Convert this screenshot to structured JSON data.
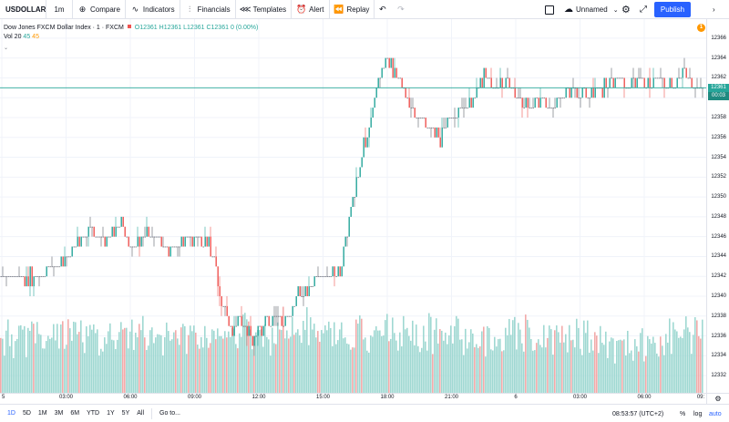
{
  "toolbar": {
    "symbol": "USDOLLAR",
    "interval": "1m",
    "compare": "Compare",
    "indicators": "Indicators",
    "financials": "Financials",
    "templates": "Templates",
    "alert": "Alert",
    "replay": "Replay",
    "layout_name": "Unnamed",
    "publish": "Publish"
  },
  "legend": {
    "title": "Dow Jones FXCM Dollar Index · 1 · FXCM",
    "open": "O12361",
    "high": "H12361",
    "low": "L12361",
    "close": "C12361",
    "change": "0 (0.00%)",
    "volume_label": "Vol 20",
    "volume_value1": "45",
    "volume_value2": "45",
    "alert_count": "1"
  },
  "price_axis": {
    "ticks": [
      "12366",
      "12364",
      "12362",
      "12360",
      "12358",
      "12356",
      "12354",
      "12352",
      "12350",
      "12348",
      "12346",
      "12344",
      "12342",
      "12340",
      "12338",
      "12336",
      "12334",
      "12332"
    ],
    "last_price": "12361",
    "countdown": "00:03"
  },
  "time_axis": {
    "ticks": [
      "5",
      "03:00",
      "06:00",
      "09:00",
      "12:00",
      "15:00",
      "18:00",
      "21:00",
      "6",
      "03:00",
      "06:00",
      "09:"
    ]
  },
  "bottom_bar": {
    "ranges": [
      "1D",
      "5D",
      "1M",
      "3M",
      "6M",
      "YTD",
      "1Y",
      "5Y",
      "All"
    ],
    "goto": "Go to...",
    "clock": "08:53:57 (UTC+2)",
    "percent": "%",
    "log": "log",
    "auto": "auto"
  },
  "colors": {
    "up": "#26a69a",
    "down": "#ef5350",
    "volume_up": "#9fd8d2",
    "volume_down": "#f2aaa9",
    "grid": "#f0f3fa",
    "accent": "#2962ff"
  },
  "chart_data": {
    "type": "candlestick",
    "y_range": [
      12331,
      12367
    ],
    "price_path": [
      [
        0,
        12342
      ],
      [
        3,
        12342
      ],
      [
        5,
        12343
      ],
      [
        7,
        12345
      ],
      [
        8,
        12347
      ],
      [
        9,
        12346
      ],
      [
        10,
        12346
      ],
      [
        11,
        12347
      ],
      [
        12,
        12345
      ],
      [
        13,
        12346
      ],
      [
        14,
        12346
      ],
      [
        15,
        12345
      ],
      [
        16,
        12345
      ],
      [
        17,
        12346
      ],
      [
        18,
        12346
      ],
      [
        19,
        12345
      ],
      [
        19.5,
        12343
      ],
      [
        20,
        12340
      ],
      [
        20.5,
        12338
      ],
      [
        21,
        12337
      ],
      [
        22,
        12337
      ],
      [
        23,
        12336
      ],
      [
        24,
        12337
      ],
      [
        25,
        12338
      ],
      [
        26,
        12338
      ],
      [
        27,
        12340
      ],
      [
        28,
        12341
      ],
      [
        29,
        12342
      ],
      [
        30,
        12342
      ],
      [
        31,
        12343
      ],
      [
        32,
        12350
      ],
      [
        33,
        12355
      ],
      [
        34,
        12360
      ],
      [
        35,
        12364
      ],
      [
        36,
        12362
      ],
      [
        37,
        12360
      ],
      [
        38,
        12358
      ],
      [
        39,
        12357
      ],
      [
        40,
        12356
      ],
      [
        41,
        12358
      ],
      [
        42,
        12359
      ],
      [
        43,
        12360
      ],
      [
        44,
        12362
      ],
      [
        45,
        12361
      ],
      [
        46,
        12362
      ],
      [
        47,
        12360
      ],
      [
        48,
        12359
      ],
      [
        49,
        12360
      ],
      [
        50,
        12359
      ],
      [
        51,
        12360
      ],
      [
        52,
        12361
      ],
      [
        53,
        12360
      ],
      [
        54,
        12361
      ],
      [
        55,
        12361
      ],
      [
        56,
        12362
      ],
      [
        57,
        12361
      ],
      [
        58,
        12362
      ],
      [
        59,
        12361
      ],
      [
        60,
        12362
      ],
      [
        61,
        12361
      ],
      [
        62,
        12363
      ],
      [
        63,
        12361
      ],
      [
        64,
        12361
      ]
    ],
    "x_range": [
      0,
      64
    ]
  }
}
